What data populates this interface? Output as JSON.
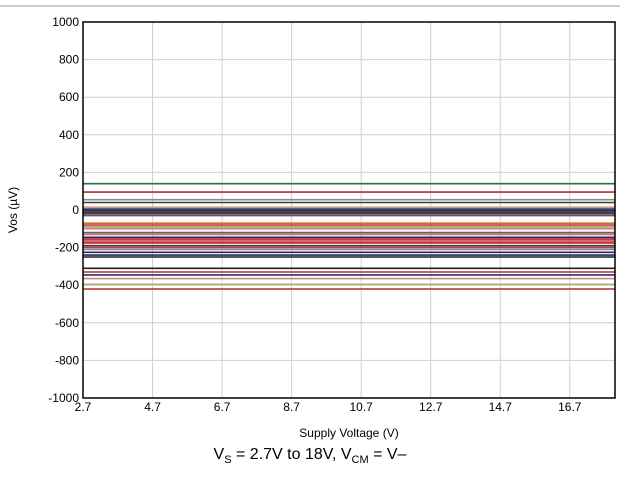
{
  "chart_data": {
    "type": "line",
    "title": "",
    "xlabel": "Supply Voltage (V)",
    "ylabel": "Vos (µV)",
    "xlim": [
      2.7,
      18
    ],
    "ylim": [
      -1000,
      1000
    ],
    "x_ticks": [
      "2.7",
      "4.7",
      "6.7",
      "8.7",
      "10.7",
      "12.7",
      "14.7",
      "16.7"
    ],
    "y_ticks": [
      "1000",
      "800",
      "600",
      "400",
      "200",
      "0",
      "-200",
      "-400",
      "-600",
      "-800",
      "-1000"
    ],
    "grid": true,
    "legend": "none",
    "x": [
      2.7,
      18
    ],
    "series": [
      {
        "values": [
          140,
          140
        ],
        "color": "#2e6b4f"
      },
      {
        "values": [
          95,
          95
        ],
        "color": "#b03030"
      },
      {
        "values": [
          55,
          55
        ],
        "color": "#8a8a8a"
      },
      {
        "values": [
          40,
          40
        ],
        "color": "#404040"
      },
      {
        "values": [
          15,
          15
        ],
        "color": "#c8a080"
      },
      {
        "values": [
          5,
          5
        ],
        "color": "#2a2a60"
      },
      {
        "values": [
          -5,
          -5
        ],
        "color": "#1a1a1a"
      },
      {
        "values": [
          -15,
          -15
        ],
        "color": "#303080"
      },
      {
        "values": [
          -20,
          -20
        ],
        "color": "#4a4a4a"
      },
      {
        "values": [
          -30,
          -30
        ],
        "color": "#7a5050"
      },
      {
        "values": [
          -70,
          -70
        ],
        "color": "#d07030"
      },
      {
        "values": [
          -80,
          -80
        ],
        "color": "#c03030"
      },
      {
        "values": [
          -90,
          -90
        ],
        "color": "#a0a060"
      },
      {
        "values": [
          -100,
          -100
        ],
        "color": "#e08080"
      },
      {
        "values": [
          -120,
          -120
        ],
        "color": "#606060"
      },
      {
        "values": [
          -130,
          -130
        ],
        "color": "#c07070"
      },
      {
        "values": [
          -145,
          -145
        ],
        "color": "#2a2a70"
      },
      {
        "values": [
          -155,
          -155
        ],
        "color": "#c02020"
      },
      {
        "values": [
          -165,
          -165
        ],
        "color": "#d03040"
      },
      {
        "values": [
          -175,
          -175
        ],
        "color": "#b02020"
      },
      {
        "values": [
          -190,
          -190
        ],
        "color": "#3a3a3a"
      },
      {
        "values": [
          -200,
          -200
        ],
        "color": "#c04040"
      },
      {
        "values": [
          -210,
          -210
        ],
        "color": "#8080c0"
      },
      {
        "values": [
          -225,
          -225
        ],
        "color": "#303030"
      },
      {
        "values": [
          -240,
          -240
        ],
        "color": "#2a2a70"
      },
      {
        "values": [
          -250,
          -250
        ],
        "color": "#1a1a40"
      },
      {
        "values": [
          -310,
          -310
        ],
        "color": "#202020"
      },
      {
        "values": [
          -330,
          -330
        ],
        "color": "#b03030"
      },
      {
        "values": [
          -345,
          -345
        ],
        "color": "#303060"
      },
      {
        "values": [
          -365,
          -365
        ],
        "color": "#c09090"
      },
      {
        "values": [
          -395,
          -395
        ],
        "color": "#b0b070"
      },
      {
        "values": [
          -420,
          -420
        ],
        "color": "#b03030"
      }
    ]
  },
  "caption": {
    "v": "V",
    "s": "S",
    "mid": " = 2.7V to 18V, V",
    "cm": "CM",
    "end": " = V–"
  }
}
